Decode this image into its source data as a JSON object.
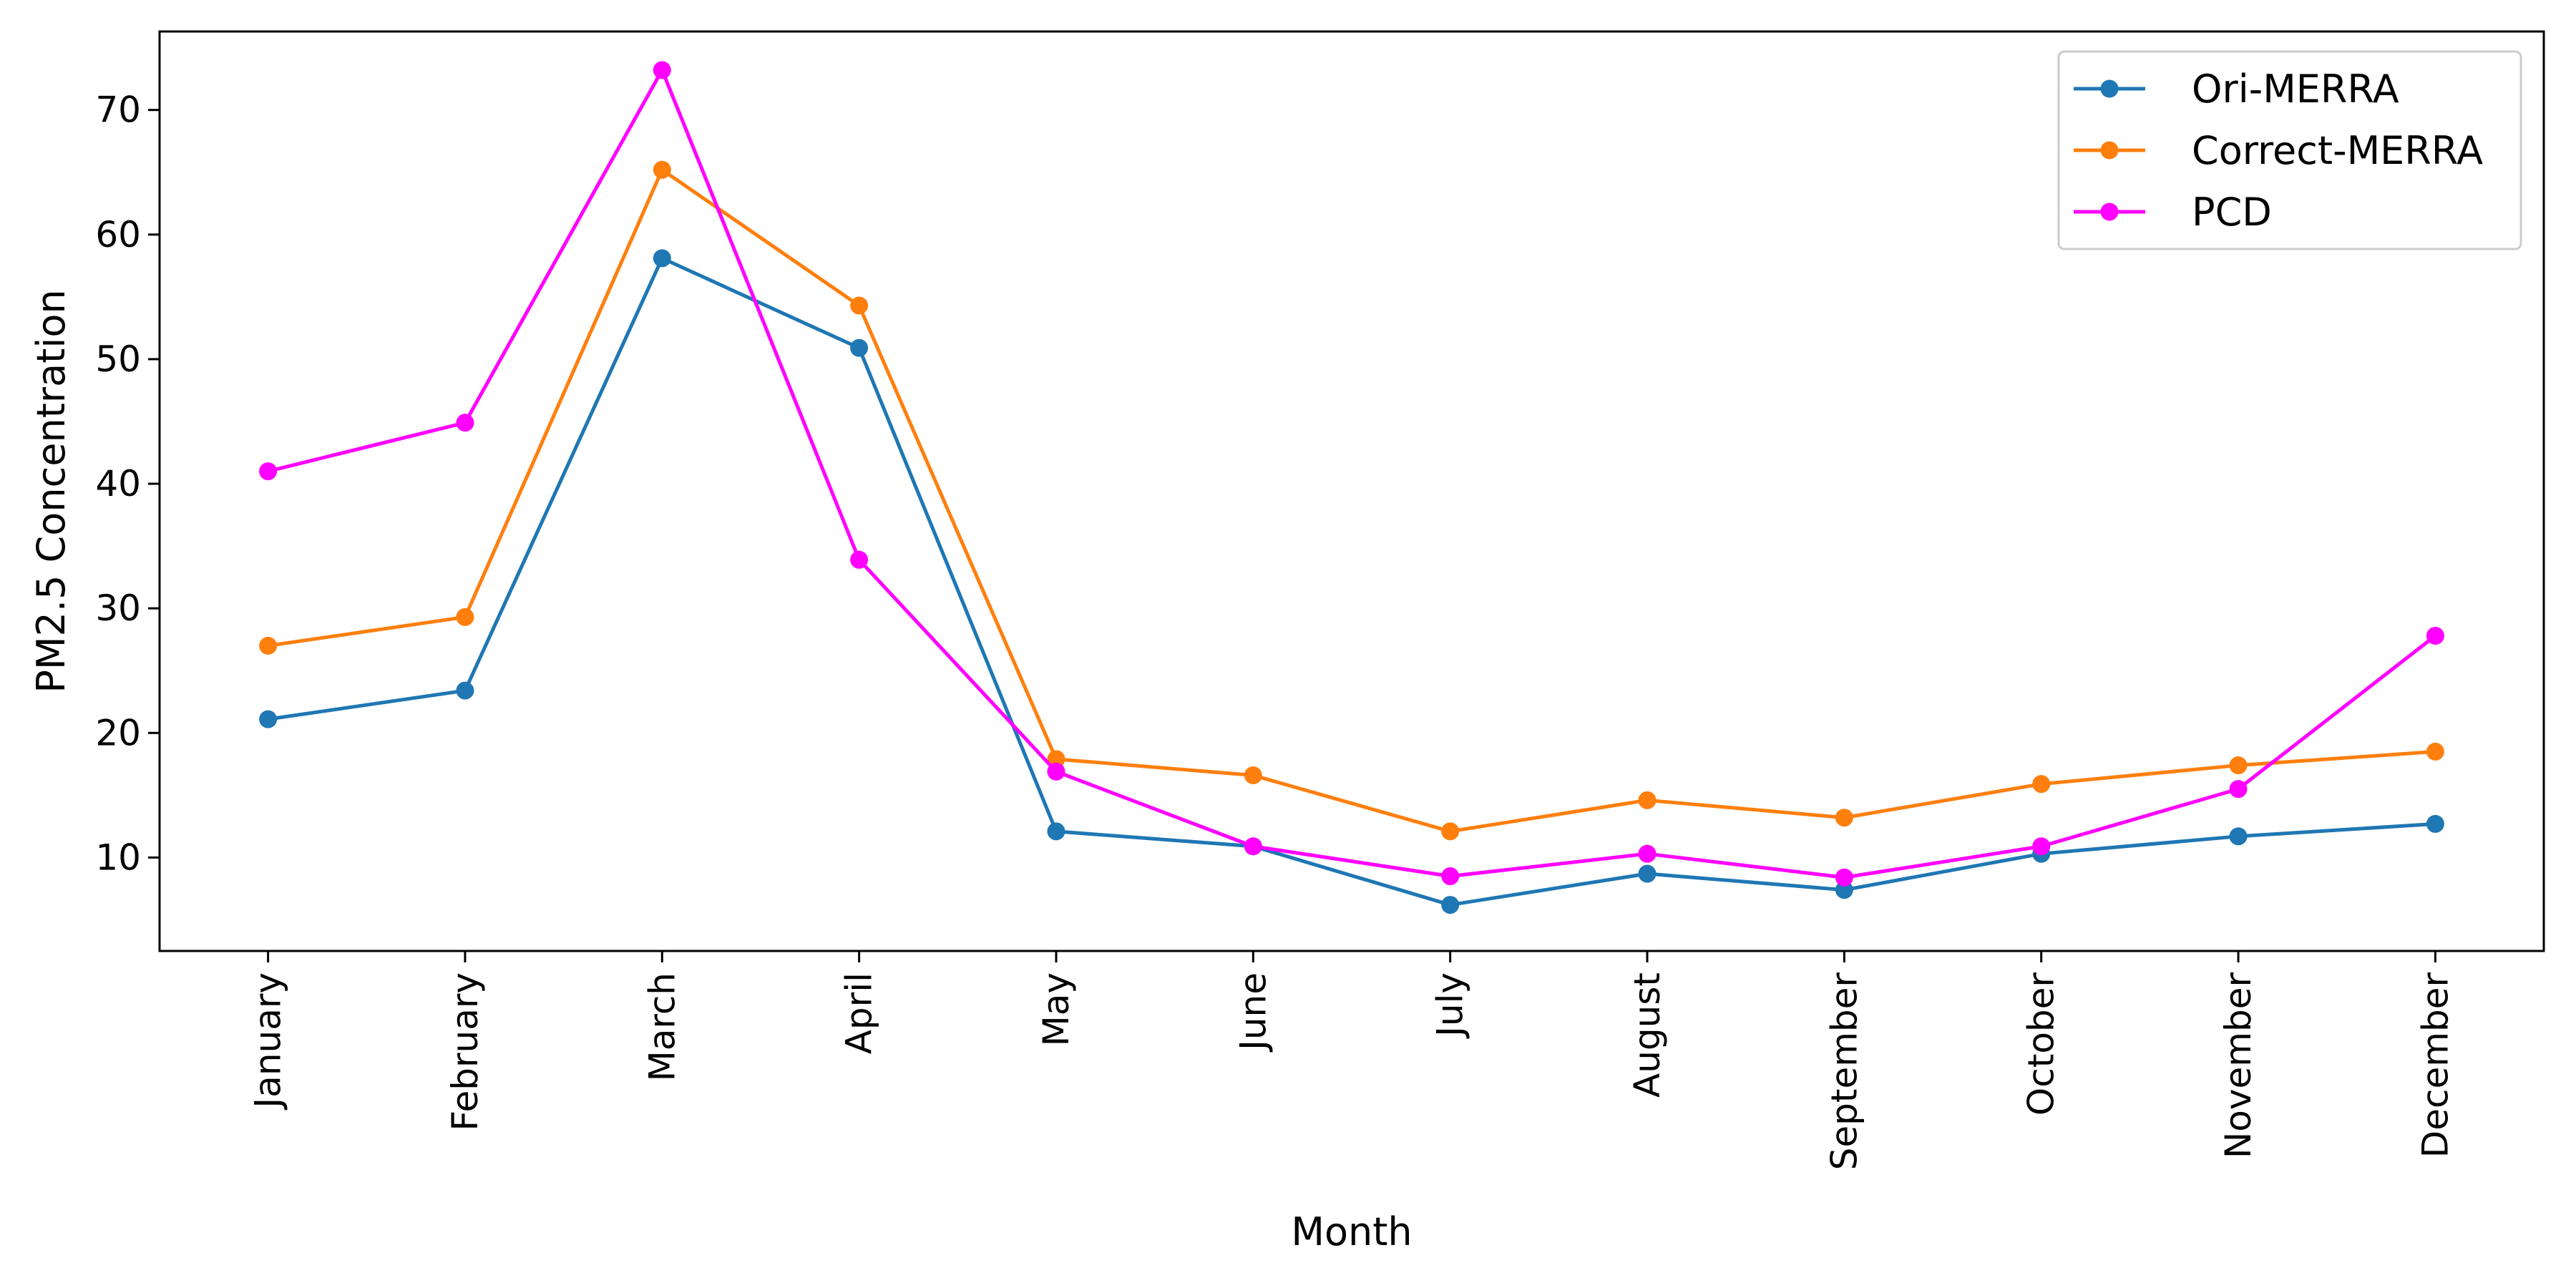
{
  "chart_data": {
    "type": "line",
    "title": "",
    "xlabel": "Month",
    "ylabel": "PM2.5 Concentration",
    "categories": [
      "January",
      "February",
      "March",
      "April",
      "May",
      "June",
      "July",
      "August",
      "September",
      "October",
      "November",
      "December"
    ],
    "ylim": [
      2.5,
      76.3
    ],
    "yticks": [
      10,
      20,
      30,
      40,
      50,
      60,
      70
    ],
    "grid": false,
    "legend_position": "top-right",
    "series": [
      {
        "name": "Ori-MERRA",
        "color": "#1f77b4",
        "marker": "circle",
        "values": [
          21.1,
          23.4,
          58.1,
          50.9,
          12.1,
          10.9,
          6.2,
          8.7,
          7.4,
          10.3,
          11.7,
          12.7
        ]
      },
      {
        "name": "Correct-MERRA",
        "color": "#ff7f0e",
        "marker": "circle",
        "values": [
          27.0,
          29.3,
          65.2,
          54.3,
          17.9,
          16.6,
          12.1,
          14.6,
          13.2,
          15.9,
          17.4,
          18.5
        ]
      },
      {
        "name": "PCD",
        "color": "#ff00ff",
        "marker": "circle",
        "values": [
          41.0,
          44.9,
          73.2,
          33.9,
          16.9,
          10.9,
          8.5,
          10.3,
          8.4,
          10.9,
          15.5,
          27.8
        ]
      }
    ]
  }
}
